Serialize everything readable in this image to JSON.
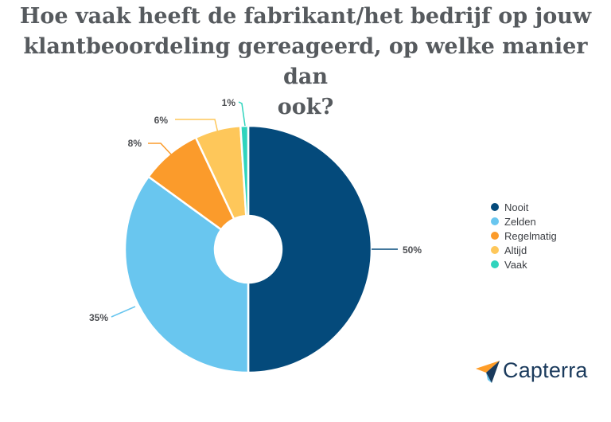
{
  "title_lines": [
    "Hoe vaak heeft de fabrikant/het bedrijf op jouw",
    "klantbeoordeling gereageerd, op welke manier dan",
    "ook?"
  ],
  "brand": "Capterra",
  "colors": {
    "brand_orange": "#ff9d28",
    "brand_blue": "#1a3a5c",
    "brand_light_blue": "#68c5ed"
  },
  "chart_data": {
    "type": "pie",
    "title": "Hoe vaak heeft de fabrikant/het bedrijf op jouw klantbeoordeling gereageerd, op welke manier dan ook?",
    "legend_position": "right",
    "donut": true,
    "slices": [
      {
        "name": "Nooit",
        "value": 50,
        "label": "50%",
        "color": "#044a7b"
      },
      {
        "name": "Zelden",
        "value": 35,
        "label": "35%",
        "color": "#69c6ef"
      },
      {
        "name": "Regelmatig",
        "value": 8,
        "label": "8%",
        "color": "#fb9b2b"
      },
      {
        "name": "Altijd",
        "value": 6,
        "label": "6%",
        "color": "#fec75a"
      },
      {
        "name": "Vaak",
        "value": 1,
        "label": "1%",
        "color": "#2fd4bd"
      }
    ]
  }
}
